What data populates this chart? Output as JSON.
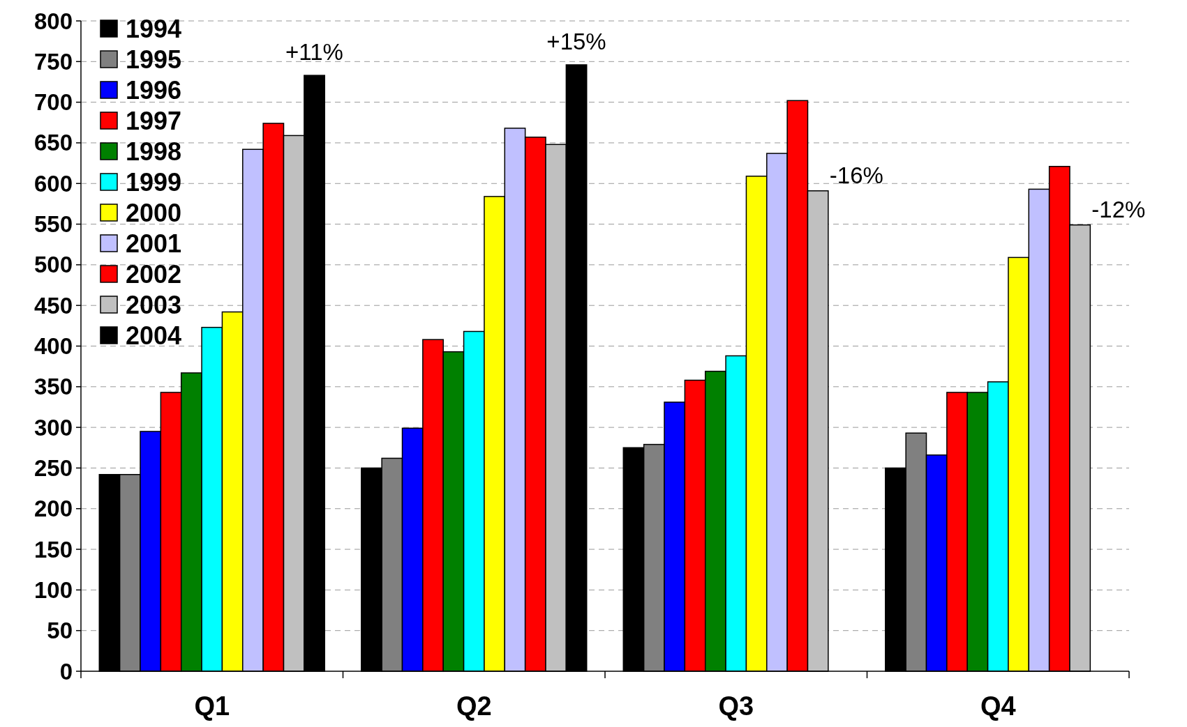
{
  "chart_data": {
    "type": "bar",
    "categories": [
      "Q1",
      "Q2",
      "Q3",
      "Q4"
    ],
    "series": [
      {
        "name": "1994",
        "color": "#000000",
        "values": [
          242,
          250,
          275,
          250
        ]
      },
      {
        "name": "1995",
        "color": "#808080",
        "values": [
          242,
          262,
          279,
          293
        ]
      },
      {
        "name": "1996",
        "color": "#0000ff",
        "values": [
          295,
          299,
          331,
          266
        ]
      },
      {
        "name": "1997",
        "color": "#ff0000",
        "values": [
          343,
          408,
          358,
          343
        ]
      },
      {
        "name": "1998",
        "color": "#008000",
        "values": [
          367,
          393,
          369,
          343
        ]
      },
      {
        "name": "1999",
        "color": "#00ffff",
        "values": [
          423,
          418,
          388,
          356
        ]
      },
      {
        "name": "2000",
        "color": "#ffff00",
        "values": [
          442,
          584,
          609,
          509
        ]
      },
      {
        "name": "2001",
        "color": "#c0c0ff",
        "values": [
          642,
          668,
          637,
          593
        ]
      },
      {
        "name": "2002",
        "color": "#ff0000",
        "values": [
          674,
          657,
          702,
          621
        ]
      },
      {
        "name": "2003",
        "color": "#c0c0c0",
        "values": [
          659,
          648,
          591,
          549
        ]
      },
      {
        "name": "2004",
        "color": "#000000",
        "values": [
          733,
          746,
          null,
          null
        ]
      }
    ],
    "ylim": [
      0,
      800
    ],
    "yticks": [
      0,
      50,
      100,
      150,
      200,
      250,
      300,
      350,
      400,
      450,
      500,
      550,
      600,
      650,
      700,
      750,
      800
    ],
    "grid": "y",
    "legend": "top left",
    "annotations": [
      "+11%",
      "+15%",
      "-16%",
      "-12%"
    ]
  }
}
